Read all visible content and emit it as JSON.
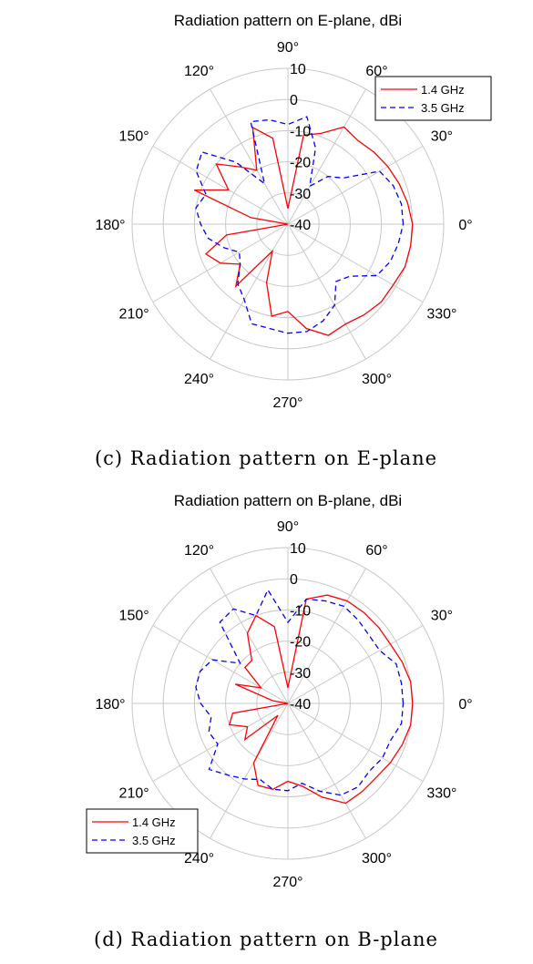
{
  "chart_data": [
    {
      "type": "polar-line",
      "title": "Radiation pattern on E-plane, dBi",
      "caption": "(c) Radiation pattern on E-plane",
      "angle_ticks": [
        "0°",
        "30°",
        "60°",
        "90°",
        "120°",
        "150°",
        "180°",
        "210°",
        "240°",
        "270°",
        "300°",
        "330°"
      ],
      "radial_ticks": [
        "10",
        "0",
        "-10",
        "-20",
        "-30",
        "-40"
      ],
      "rlim": [
        -40,
        10
      ],
      "grid": true,
      "legend_position": "top-right",
      "series": [
        {
          "name": "1.4 GHz",
          "color": "#ff0000",
          "dash": "solid",
          "theta": [
            0,
            10,
            20,
            30,
            40,
            50,
            60,
            70,
            80,
            90,
            100,
            110,
            120,
            130,
            140,
            150,
            160,
            170,
            180,
            190,
            200,
            210,
            220,
            230,
            240,
            250,
            260,
            270,
            280,
            290,
            300,
            310,
            320,
            330,
            340,
            350
          ],
          "r": [
            0,
            -1,
            -2,
            -3,
            -4,
            -5,
            -4,
            -9,
            -11,
            -35,
            -12,
            -7,
            -20,
            -16,
            -10,
            -18,
            -8,
            -28,
            -40,
            -20,
            -12,
            -15,
            -20,
            -14,
            -30,
            -20,
            -10,
            -12,
            -6,
            -2,
            -3,
            -2,
            -1,
            -1,
            0,
            0
          ]
        },
        {
          "name": "3.5 GHz",
          "color": "#0000ff",
          "dash": "dashed",
          "theta": [
            0,
            10,
            20,
            30,
            40,
            50,
            60,
            70,
            80,
            90,
            100,
            110,
            120,
            130,
            140,
            150,
            160,
            170,
            180,
            190,
            200,
            210,
            220,
            230,
            240,
            250,
            260,
            270,
            280,
            290,
            300,
            310,
            320,
            330,
            340,
            350
          ],
          "r": [
            -3,
            -3,
            -4,
            -6,
            -17,
            -20,
            -26,
            -14,
            -5,
            -8,
            -6,
            -5,
            -25,
            -14,
            -4,
            -6,
            -12,
            -10,
            -12,
            -14,
            -18,
            -22,
            -20,
            -15,
            -12,
            -6,
            -6,
            -5,
            -5,
            -7,
            -10,
            -16,
            -14,
            -7,
            -5,
            -4
          ]
        }
      ]
    },
    {
      "type": "polar-line",
      "title": "Radiation pattern on B-plane, dBi",
      "caption": "(d) Radiation pattern on B-plane",
      "angle_ticks": [
        "0°",
        "30°",
        "60°",
        "90°",
        "120°",
        "150°",
        "180°",
        "210°",
        "240°",
        "270°",
        "300°",
        "330°"
      ],
      "radial_ticks": [
        "10",
        "0",
        "-10",
        "-20",
        "-30",
        "-40"
      ],
      "rlim": [
        -40,
        10
      ],
      "grid": true,
      "legend_position": "bottom-left",
      "series": [
        {
          "name": "1.4 GHz",
          "color": "#ff0000",
          "dash": "solid",
          "theta": [
            0,
            10,
            20,
            30,
            40,
            50,
            60,
            70,
            80,
            90,
            100,
            110,
            120,
            130,
            140,
            150,
            160,
            170,
            180,
            190,
            200,
            210,
            220,
            230,
            240,
            250,
            260,
            270,
            280,
            290,
            300,
            310,
            320,
            330,
            340,
            350
          ],
          "r": [
            0,
            0,
            -1,
            -2,
            -2,
            -2,
            -2,
            -3,
            -6,
            -35,
            -15,
            -10,
            -14,
            -22,
            -22,
            -30,
            -22,
            -35,
            -40,
            -22,
            -20,
            -25,
            -22,
            -35,
            -18,
            -12,
            -12,
            -15,
            -13,
            -8,
            -3,
            -3,
            -3,
            -2,
            -1,
            0
          ]
        },
        {
          "name": "3.5 GHz",
          "color": "#0000ff",
          "dash": "dashed",
          "theta": [
            0,
            10,
            20,
            30,
            40,
            50,
            60,
            70,
            80,
            90,
            100,
            110,
            120,
            130,
            140,
            150,
            160,
            170,
            180,
            190,
            200,
            210,
            220,
            230,
            240,
            250,
            260,
            270,
            280,
            290,
            300,
            310,
            320,
            330,
            340,
            350
          ],
          "r": [
            -3,
            -3,
            -3,
            -6,
            -6,
            -5,
            -4,
            -5,
            -6,
            -14,
            -3,
            -10,
            -5,
            -6,
            -20,
            -12,
            -10,
            -10,
            -12,
            -15,
            -13,
            -14,
            -7,
            -10,
            -12,
            -14,
            -12,
            -12,
            -14,
            -10,
            -6,
            -5,
            -6,
            -5,
            -5,
            -3
          ]
        }
      ]
    }
  ]
}
